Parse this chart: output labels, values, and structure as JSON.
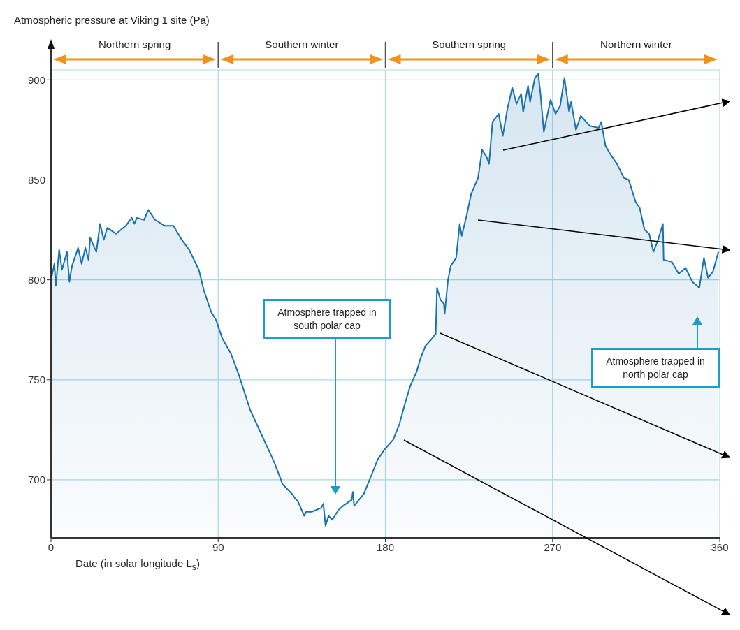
{
  "chart_data": {
    "type": "area",
    "ylabel": "Atmospheric pressure at Viking 1 site (Pa)",
    "xlabel": "Date (in solar longitude L$_{s}$)",
    "xlim": [
      0,
      360
    ],
    "xticks": [
      0,
      90,
      180,
      270,
      360
    ],
    "ylim": [
      671,
      905
    ],
    "yticks": [
      700,
      750,
      800,
      850,
      900
    ],
    "grid": true,
    "x": [
      0,
      1.8,
      2.6,
      4.4,
      5.9,
      8.6,
      9.9,
      11.3,
      14.6,
      16.5,
      18.5,
      20.2,
      21.1,
      24.4,
      26.4,
      28.4,
      30.3,
      35,
      40.2,
      43.5,
      44.9,
      46.2,
      50.1,
      52.4,
      56,
      61.3,
      65.9,
      70.4,
      74.4,
      79.6,
      82.2,
      86.2,
      88.8,
      92.1,
      96.9,
      101.3,
      107.2,
      118.6,
      120.5,
      123.8,
      124.5,
      129.7,
      131.2,
      133,
      136.3,
      137.4,
      140.4,
      145.5,
      146.6,
      147.8,
      149.4,
      151.4,
      154.8,
      157.3,
      161.9,
      162.5,
      163.2,
      168.4,
      173.2,
      175.8,
      179.4,
      184.2,
      187.6,
      190.5,
      193.4,
      196.8,
      199,
      201.6,
      204.5,
      207.1,
      207.8,
      209.7,
      211.5,
      211.9,
      213.7,
      215.2,
      218.1,
      220,
      221.1,
      223.7,
      226.2,
      229.9,
      232.1,
      234.7,
      235.8,
      237.7,
      241,
      243.2,
      245.8,
      248.3,
      250.6,
      253.1,
      254.2,
      256.8,
      257.9,
      260.5,
      262.3,
      263.5,
      265.3,
      268.9,
      271.6,
      274.1,
      276.4,
      278.9,
      280,
      282.6,
      285.2,
      290,
      294.8,
      296.2,
      298.5,
      301,
      304.7,
      308.4,
      311,
      314.7,
      316.9,
      319.5,
      322,
      324.3,
      326.8,
      329.4,
      329.8,
      334.2,
      337.9,
      341.6,
      345.3,
      349,
      351.5,
      353.7,
      356.3,
      359.3
    ],
    "series": [
      {
        "color": "#1a72ad",
        "values": [
          800,
          808,
          797,
          815,
          805,
          814,
          799,
          807,
          816,
          808,
          816,
          810,
          821,
          814,
          828,
          820,
          826,
          823,
          827,
          831,
          828,
          831,
          830,
          835,
          830,
          827,
          827,
          820,
          815,
          805,
          795,
          784,
          780,
          771,
          763,
          752,
          735,
          712,
          708,
          700,
          698,
          693,
          691,
          689,
          682,
          684,
          684,
          686,
          688,
          677,
          682,
          680,
          685,
          687,
          690,
          694,
          687,
          693,
          704,
          710,
          715,
          720,
          728,
          738,
          747,
          754,
          761,
          767,
          770,
          773,
          796,
          790,
          788,
          783,
          800,
          807,
          811,
          828,
          822,
          832,
          843,
          851,
          865,
          861,
          858,
          879,
          883,
          872,
          886,
          896,
          888,
          893,
          884,
          897,
          889,
          901,
          903,
          893,
          874,
          890,
          883,
          887,
          901,
          884,
          889,
          875,
          882,
          877,
          876,
          879,
          867,
          863,
          858,
          851,
          850,
          839,
          836,
          825,
          823,
          814,
          820,
          828,
          810,
          809,
          803,
          806,
          799,
          796,
          811,
          801,
          804,
          814
        ]
      }
    ],
    "annotations": [
      "Northern spring",
      "Southern winter",
      "Southern spring",
      "Northern winter",
      "Atmosphere trapped in south polar cap",
      "Atmosphere trapped in north polar cap"
    ]
  }
}
